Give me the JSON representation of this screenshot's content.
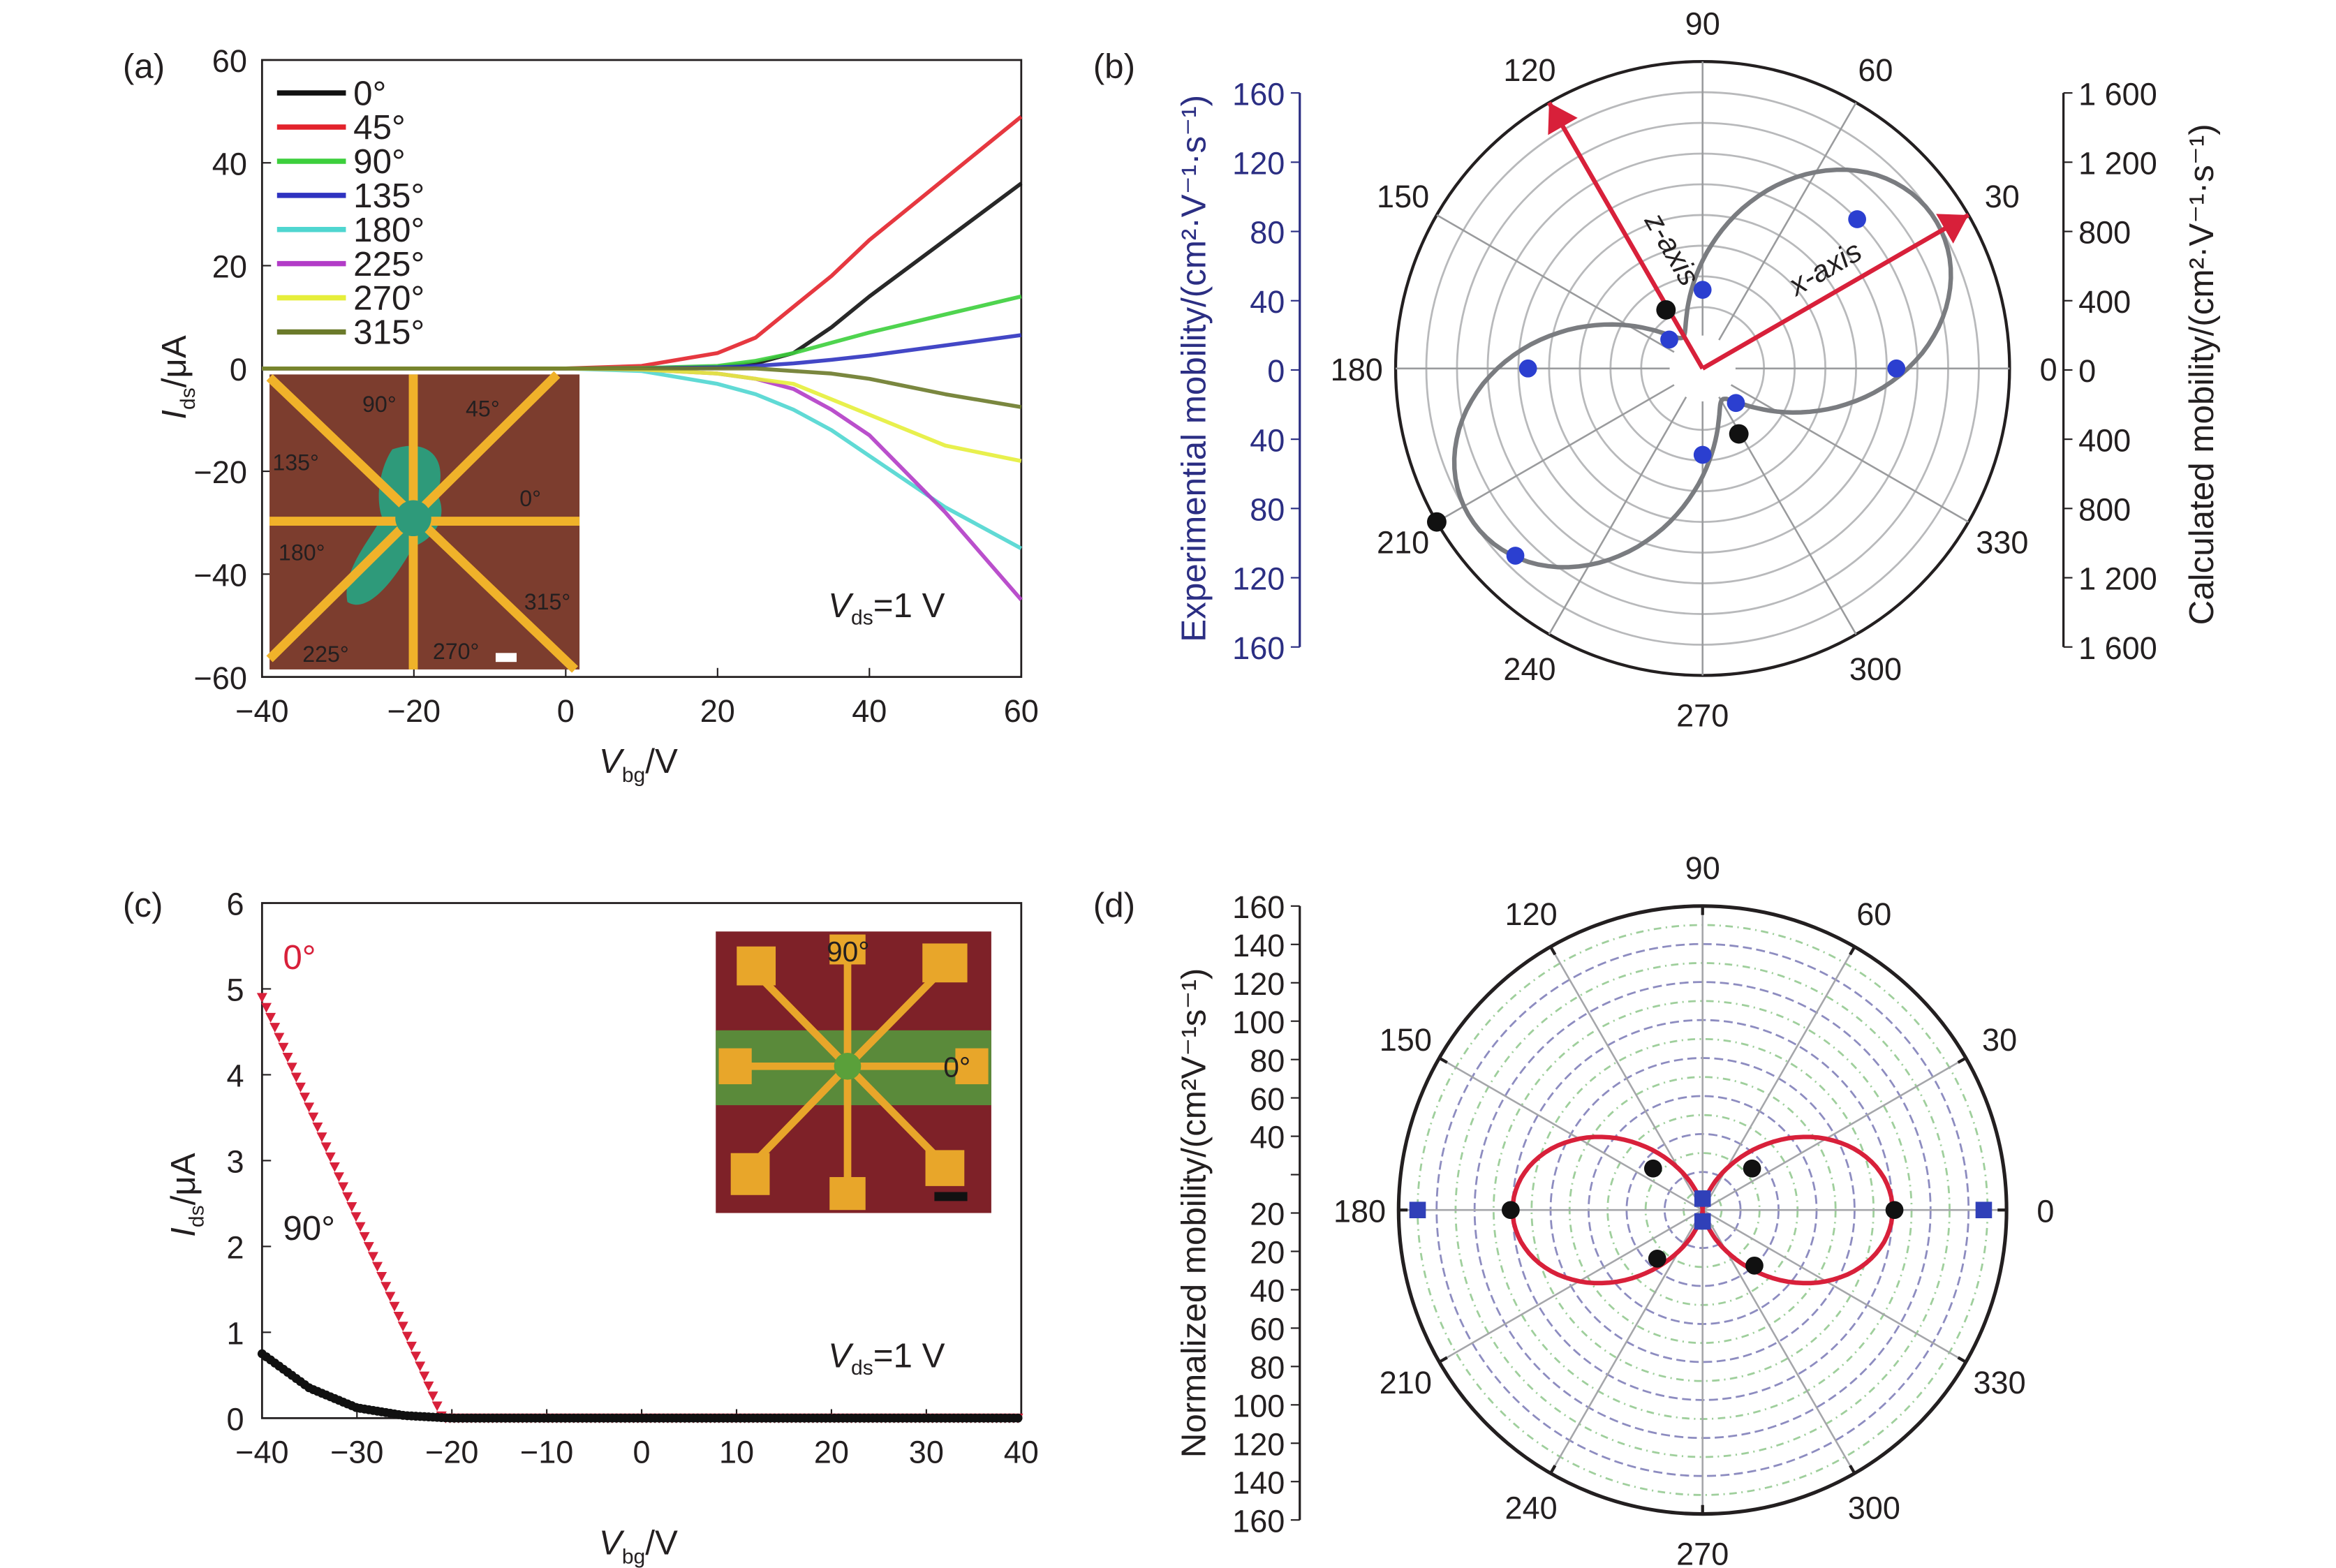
{
  "panels": {
    "a": "(a)",
    "b": "(b)",
    "c": "(c)",
    "d": "(d)"
  },
  "chart_data": [
    {
      "id": "a",
      "type": "line",
      "xlabel": {
        "var": "V",
        "sub": "bg",
        "unit": "/V"
      },
      "ylabel": {
        "var": "I",
        "sub": "ds",
        "unit": "/μA"
      },
      "xlim": [
        -40,
        60
      ],
      "ylim": [
        -60,
        60
      ],
      "xticks": [
        -40,
        -20,
        0,
        20,
        40,
        60
      ],
      "yticks": [
        -60,
        -40,
        -20,
        0,
        20,
        40,
        60
      ],
      "xtick_labels": [
        "−40",
        "−20",
        "0",
        "20",
        "40",
        "60"
      ],
      "ytick_labels": [
        "−60",
        "−40",
        "−20",
        "0",
        "20",
        "40",
        "60"
      ],
      "legend_position": "top-left",
      "annotation": {
        "var": "V",
        "sub": "ds",
        "rest": "=1 V"
      },
      "x": [
        -40,
        0,
        10,
        20,
        25,
        30,
        35,
        40,
        50,
        60
      ],
      "series": [
        {
          "name": "0°",
          "color": "#111111",
          "values": [
            0,
            0,
            0,
            0.3,
            1,
            3,
            8,
            14,
            25,
            36
          ]
        },
        {
          "name": "45°",
          "color": "#e3222b",
          "values": [
            0,
            0,
            0.5,
            3,
            6,
            12,
            18,
            25,
            37,
            49
          ]
        },
        {
          "name": "90°",
          "color": "#3ccf3c",
          "values": [
            0,
            0,
            0.1,
            0.5,
            1.5,
            3,
            5,
            7,
            10.5,
            14
          ]
        },
        {
          "name": "135°",
          "color": "#2f33c0",
          "values": [
            0,
            0,
            0,
            0.2,
            0.5,
            1,
            1.7,
            2.5,
            4.5,
            6.5
          ]
        },
        {
          "name": "180°",
          "color": "#4fd6d0",
          "values": [
            0,
            0,
            -0.5,
            -3,
            -5,
            -8,
            -12,
            -17,
            -27,
            -35
          ]
        },
        {
          "name": "225°",
          "color": "#b23cc7",
          "values": [
            0,
            0,
            -0.2,
            -1,
            -2,
            -4,
            -8,
            -13,
            -28,
            -45
          ]
        },
        {
          "name": "270°",
          "color": "#e6ee3a",
          "values": [
            0,
            0,
            -0.2,
            -1,
            -2,
            -3,
            -6,
            -9,
            -15,
            -18
          ]
        },
        {
          "name": "315°",
          "color": "#6b7a2a",
          "values": [
            0,
            0,
            0,
            0,
            0,
            -0.5,
            -1,
            -2,
            -5,
            -7.5
          ]
        }
      ],
      "inset_labels": [
        "90°",
        "45°",
        "135°",
        "0°",
        "180°",
        "315°",
        "225°",
        "270°"
      ]
    },
    {
      "id": "b",
      "type": "polar",
      "angle_ticks": [
        0,
        30,
        60,
        90,
        120,
        150,
        180,
        210,
        240,
        270,
        300,
        330
      ],
      "left_axis": {
        "label": "Experimential mobility/(cm²·V⁻¹·s⁻¹)",
        "ticks": [
          "160",
          "120",
          "80",
          "40",
          "0",
          "40",
          "80",
          "120",
          "160"
        ],
        "color": "#2b2e83",
        "max": 160
      },
      "right_axis": {
        "label": "Calculated mobility/(cm²·V⁻¹·s⁻¹)",
        "ticks": [
          "1 600",
          "1 200",
          "800",
          "400",
          "0",
          "400",
          "800",
          "1 200",
          "1 600"
        ],
        "max": 1600
      },
      "arrows": [
        {
          "label": "z-axis",
          "angle": 120
        },
        {
          "label": "x-axis",
          "angle": 30
        }
      ],
      "calculated_curve": {
        "color": "#7a7c80",
        "formula": "r = 0.12 + 0.78·cos²(θ − 33°) (fraction of 1600)",
        "offset": 0.12,
        "amp": 0.78,
        "phase": 33
      },
      "experimental_points": {
        "color": "#2b3fd0",
        "points": [
          [
            0,
            101
          ],
          [
            44,
            112
          ],
          [
            90,
            41
          ],
          [
            139,
            23
          ],
          [
            180,
            91
          ],
          [
            225,
            138
          ],
          [
            270,
            45
          ],
          [
            314,
            25
          ]
        ]
      },
      "calculated_points": {
        "color": "#111111",
        "points": [
          [
            122,
            360
          ],
          [
            210,
            1600
          ],
          [
            299,
            390
          ]
        ]
      }
    },
    {
      "id": "c",
      "type": "scatter",
      "xlabel": {
        "var": "V",
        "sub": "bg",
        "unit": "/V"
      },
      "ylabel": {
        "var": "I",
        "sub": "ds",
        "unit": "/μA"
      },
      "xlim": [
        -40,
        40
      ],
      "ylim": [
        0,
        6
      ],
      "xticks": [
        -40,
        -30,
        -20,
        -10,
        0,
        10,
        20,
        30,
        40
      ],
      "yticks": [
        0,
        1,
        2,
        3,
        4,
        5,
        6
      ],
      "xtick_labels": [
        "−40",
        "−30",
        "−20",
        "−10",
        "0",
        "10",
        "20",
        "30",
        "40"
      ],
      "ytick_labels": [
        "0",
        "1",
        "2",
        "3",
        "4",
        "5",
        "6"
      ],
      "annotation": {
        "var": "V",
        "sub": "ds",
        "rest": "=1 V"
      },
      "series": [
        {
          "name": "0°",
          "color": "#d8203a",
          "marker": "triangle",
          "points": [
            [
              -40,
              4.9
            ],
            [
              -21,
              0
            ],
            [
              40,
              0
            ]
          ]
        },
        {
          "name": "90°",
          "color": "#111111",
          "marker": "circle",
          "points": [
            [
              -40,
              0.75
            ],
            [
              -35,
              0.35
            ],
            [
              -30,
              0.12
            ],
            [
              -25,
              0.03
            ],
            [
              -20,
              0
            ],
            [
              40,
              0
            ]
          ]
        }
      ],
      "inset_labels": [
        "90°",
        "0°"
      ]
    },
    {
      "id": "d",
      "type": "polar",
      "angle_ticks": [
        0,
        30,
        60,
        90,
        120,
        150,
        180,
        210,
        240,
        270,
        300,
        330
      ],
      "left_axis": {
        "label": "Normalized mobility/(cm²V⁻¹s⁻¹)",
        "ticks": [
          "160",
          "140",
          "120",
          "100",
          "80",
          "60",
          "40",
          "20",
          "20",
          "40",
          "60",
          "80",
          "100",
          "120",
          "140",
          "160"
        ],
        "max": 160
      },
      "fit_curve": {
        "color": "#d8203a",
        "formula": "r = 100·cos²θ"
      },
      "black_points": [
        [
          0,
          101
        ],
        [
          40,
          34
        ],
        [
          140,
          34
        ],
        [
          180,
          101
        ],
        [
          227,
          35
        ],
        [
          313,
          40
        ]
      ],
      "blue_squares": [
        [
          0,
          148
        ],
        [
          180,
          150
        ],
        [
          90,
          6
        ],
        [
          270,
          6
        ]
      ]
    }
  ]
}
